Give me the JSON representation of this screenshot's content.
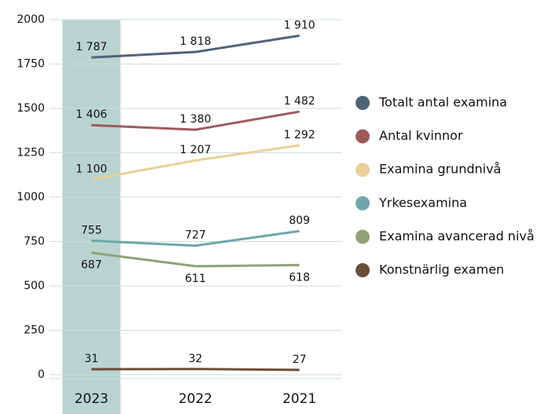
{
  "chart_data": {
    "type": "line",
    "categories": [
      "2023",
      "2022",
      "2021"
    ],
    "ylim": [
      0,
      2000
    ],
    "yticks": [
      0,
      250,
      500,
      750,
      1000,
      1250,
      1500,
      1750,
      2000
    ],
    "grid": true,
    "highlight_category": "2023",
    "series": [
      {
        "name": "Totalt antal examina",
        "color": "#4f6478",
        "values": [
          1787,
          1818,
          1910
        ],
        "value_labels": [
          "1 787",
          "1 818",
          "1 910"
        ]
      },
      {
        "name": "Antal kvinnor",
        "color": "#9e5b5b",
        "values": [
          1406,
          1380,
          1482
        ],
        "value_labels": [
          "1 406",
          "1 380",
          "1 482"
        ]
      },
      {
        "name": "Examina grundnivå",
        "color": "#e9d09a",
        "values": [
          1100,
          1207,
          1292
        ],
        "value_labels": [
          "1 100",
          "1 207",
          "1 292"
        ]
      },
      {
        "name": "Yrkesexamina",
        "color": "#6ea6ab",
        "values": [
          755,
          727,
          809
        ]
      },
      {
        "name": "Examina avancerad nivå",
        "color": "#8fa276",
        "values": [
          687,
          611,
          618
        ]
      },
      {
        "name": "Konstnärlig examen",
        "color": "#6b4e3a",
        "values": [
          31,
          32,
          27
        ]
      }
    ]
  }
}
